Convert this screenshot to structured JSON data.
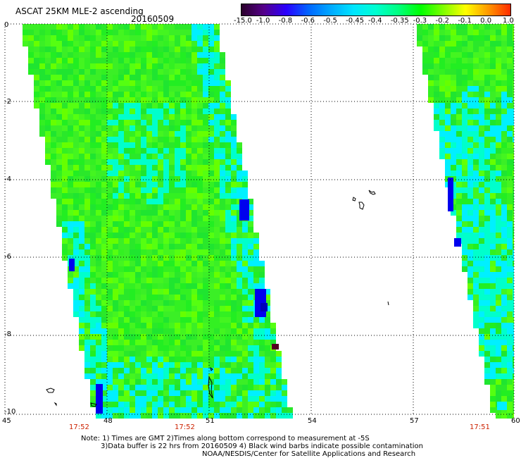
{
  "header": {
    "title": "ASCAT 25KM MLE-2 ascending",
    "date": "20160509"
  },
  "colorbar": {
    "labels": [
      "-15.0",
      "-1.0",
      "-0.8",
      "-0.6",
      "-0.5",
      "-0.45",
      "-0.4",
      "-0.35",
      "-0.3",
      "-0.2",
      "-0.1",
      "0.0",
      "1.0"
    ],
    "colors": [
      "#2a002a",
      "#55008a",
      "#2a00ff",
      "#0066ff",
      "#00aaff",
      "#00e5ff",
      "#00ffd0",
      "#00ff80",
      "#00ff00",
      "#7fff00",
      "#ffff00",
      "#ff9900",
      "#ff2a00"
    ]
  },
  "axes": {
    "lat_labels": [
      "0",
      "-2",
      "-4",
      "-6",
      "-8",
      "-10"
    ],
    "lon_labels": [
      "45",
      "48",
      "51",
      "54",
      "57",
      "60"
    ],
    "lat_range": [
      -10,
      0
    ],
    "lon_range": [
      45,
      60
    ]
  },
  "passes": {
    "times": [
      "17:52",
      "17:52",
      "17:51"
    ]
  },
  "swath_colors": {
    "green": "#22ee22",
    "lightgreen": "#66ff00",
    "cyan": "#00ffcc",
    "aqua": "#00f0ff",
    "blue": "#0000ee",
    "darkred": "#550022"
  },
  "footer": {
    "note_line1": "Note: 1) Times are GMT 2)Times along bottom correspond to measurement at -5S",
    "note_line2": "3)Data buffer is 22 hrs from 20160509 4) Black wind barbs indicate possible contamination",
    "note_line3": "NOAA/NESDIS/Center for Satellite Applications and Research"
  }
}
